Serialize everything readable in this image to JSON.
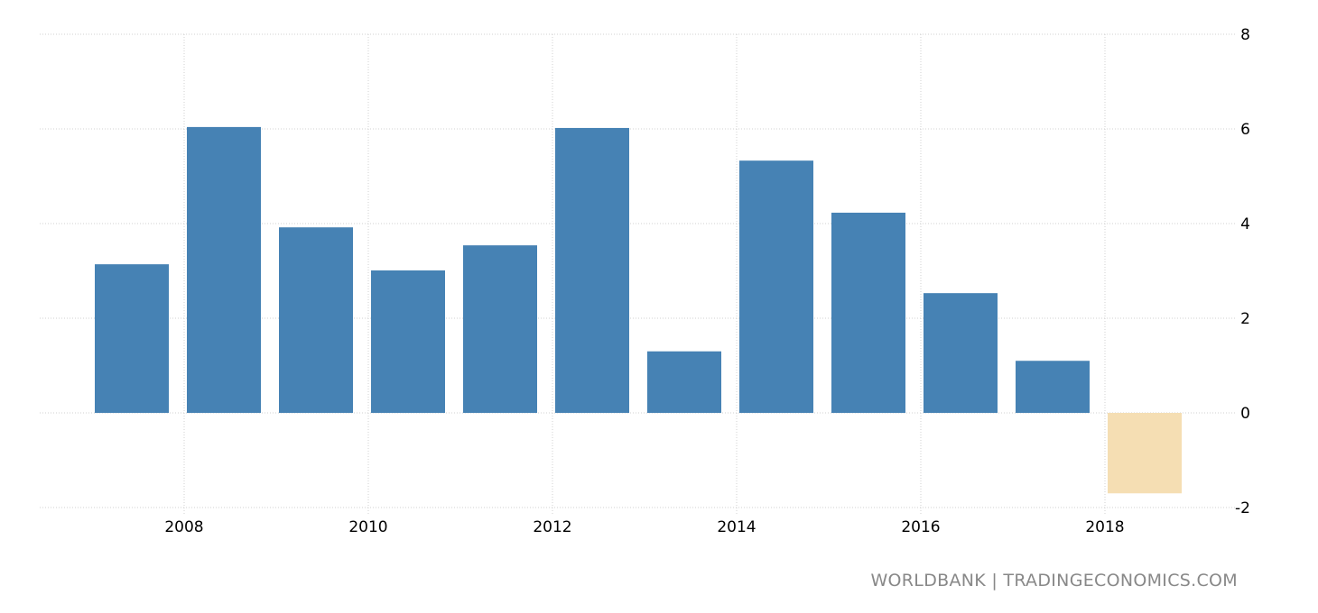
{
  "chart_data": {
    "type": "bar",
    "title": "",
    "xlabel": "",
    "ylabel": "",
    "categories": [
      "2007",
      "2008",
      "2009",
      "2010",
      "2011",
      "2012",
      "2013",
      "2014",
      "2015",
      "2016",
      "2017",
      "2018"
    ],
    "values": [
      3.14,
      6.04,
      3.92,
      3.01,
      3.54,
      6.02,
      1.3,
      5.33,
      4.23,
      2.53,
      1.1,
      -1.7
    ],
    "ylim": [
      -2,
      8
    ],
    "yticks": [
      "-2",
      "0",
      "2",
      "4",
      "6",
      "8"
    ],
    "xticks": [
      "2008",
      "2010",
      "2012",
      "2014",
      "2016",
      "2018"
    ],
    "grid": true,
    "colors": {
      "positive": "#4682b4",
      "forecast": "#f5deb3",
      "grid": "#d0d0d0"
    },
    "highlighted_category": "2018"
  },
  "footer": {
    "source": "WORLDBANK | TRADINGECONOMICS.COM"
  }
}
